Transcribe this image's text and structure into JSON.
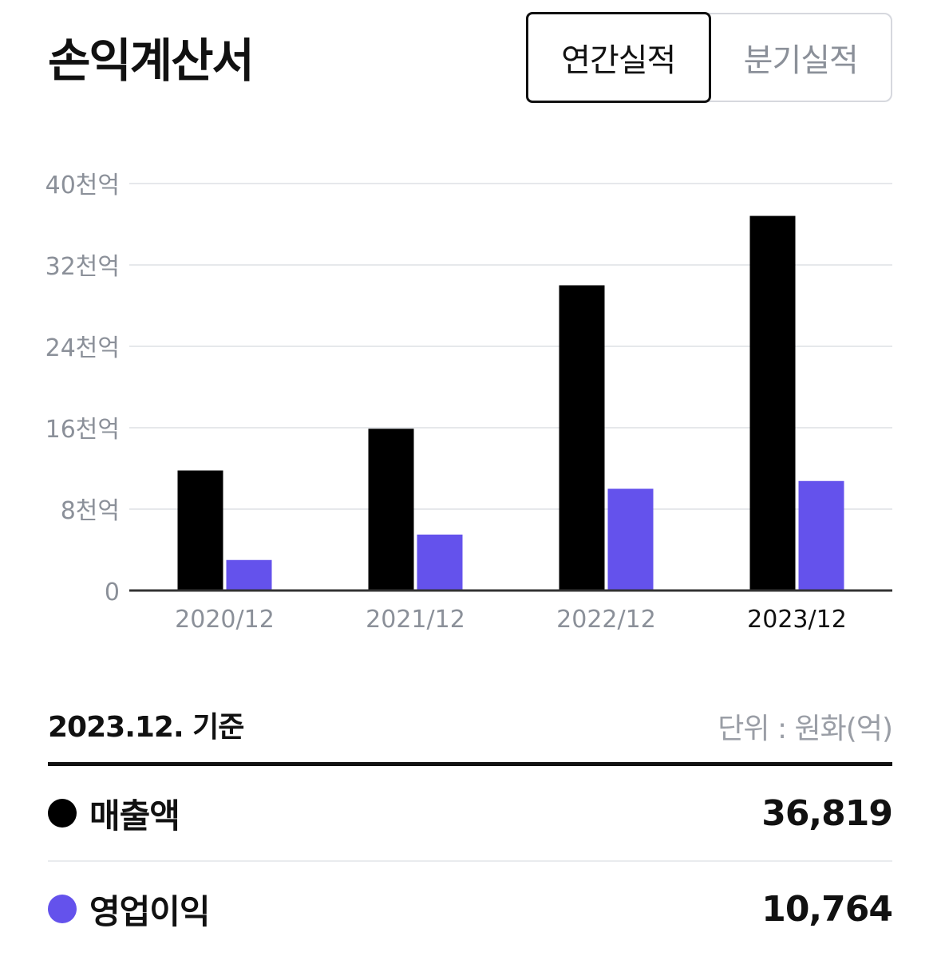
{
  "header": {
    "title": "손익계산서",
    "tabs": [
      {
        "label": "연간실적",
        "active": true
      },
      {
        "label": "분기실적",
        "active": false
      }
    ]
  },
  "chart_data": {
    "type": "bar",
    "categories": [
      "2020/12",
      "2021/12",
      "2022/12",
      "2023/12"
    ],
    "highlighted_category": "2023/12",
    "series": [
      {
        "name": "매출액",
        "color": "#000000",
        "values": [
          11800,
          15900,
          30000,
          36819
        ]
      },
      {
        "name": "영업이익",
        "color": "#6452ec",
        "values": [
          3000,
          5500,
          10000,
          10764
        ]
      }
    ],
    "y_ticks": [
      {
        "value": 0,
        "label": "0"
      },
      {
        "value": 8000,
        "label": "8천억"
      },
      {
        "value": 16000,
        "label": "16천억"
      },
      {
        "value": 24000,
        "label": "24천억"
      },
      {
        "value": 32000,
        "label": "32천억"
      },
      {
        "value": 40000,
        "label": "40천억"
      }
    ],
    "ylim": [
      0,
      40000
    ],
    "grid": true
  },
  "summary": {
    "basis": "2023.12. 기준",
    "unit": "단위 : 원화(억)",
    "rows": [
      {
        "label": "매출액",
        "value": "36,819",
        "color": "#000000"
      },
      {
        "label": "영업이익",
        "value": "10,764",
        "color": "#6452ec"
      }
    ]
  }
}
